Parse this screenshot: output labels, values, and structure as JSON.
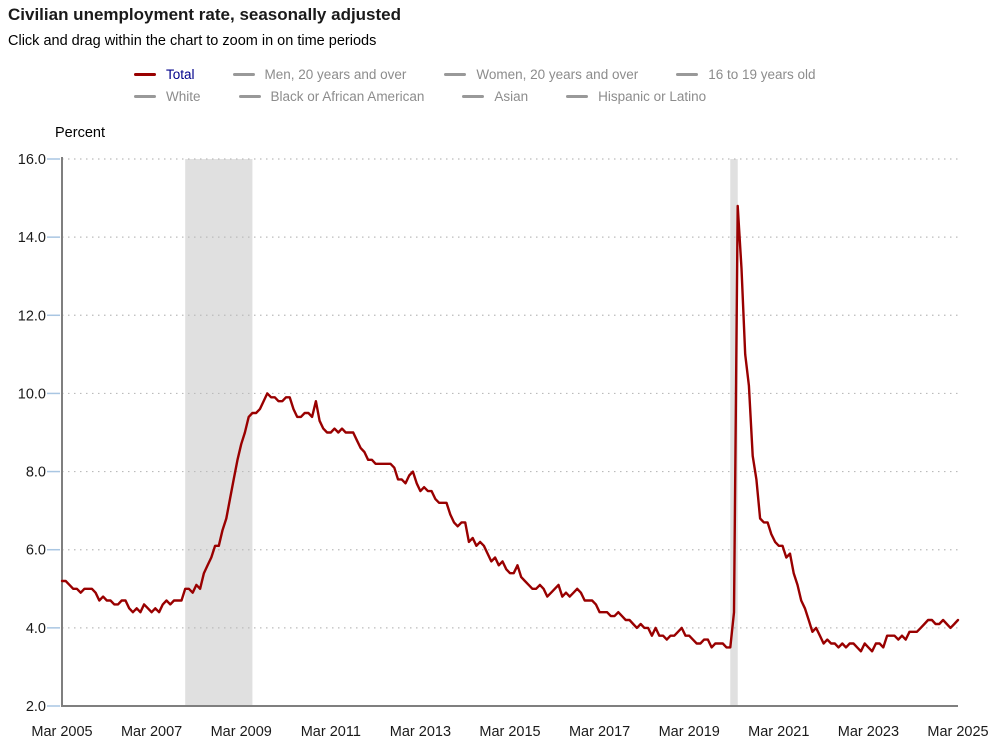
{
  "header": {
    "title": "Civilian unemployment rate, seasonally adjusted",
    "subtitle": "Click and drag within the chart to zoom in on time periods"
  },
  "legend": {
    "rows": [
      {
        "items": [
          {
            "label": "Total",
            "active": true
          },
          {
            "label": "Men, 20 years and over",
            "active": false
          },
          {
            "label": "Women, 20 years and over",
            "active": false
          },
          {
            "label": "16 to 19 years old",
            "active": false
          }
        ]
      },
      {
        "items": [
          {
            "label": "White",
            "active": false
          },
          {
            "label": "Black or African American",
            "active": false
          },
          {
            "label": "Asian",
            "active": false
          },
          {
            "label": "Hispanic or Latino",
            "active": false
          }
        ]
      }
    ]
  },
  "colors": {
    "series_active": "#990000",
    "active_legend_label": "#00008b",
    "inactive_legend_text": "#8c8c8c",
    "inactive_legend_dash": "#999999",
    "recession_band": "#e0e0e0",
    "axis": "#7f7f7f",
    "gridline": "#bbbbbb",
    "ytick_mark": "#a9c6e2",
    "axis_label_text": "#1a1a1a"
  },
  "chart_data": {
    "type": "line",
    "title": "Civilian unemployment rate, seasonally adjusted",
    "xlabel": "",
    "ylabel": "Percent",
    "ylim": [
      2.0,
      16.0
    ],
    "ytick_step": 2.0,
    "ytick_labels": [
      "2.0",
      "4.0",
      "6.0",
      "8.0",
      "10.0",
      "12.0",
      "14.0",
      "16.0"
    ],
    "x_start": "2005-03",
    "x_end": "2025-03",
    "xtick_labels": [
      "Mar 2005",
      "Mar 2007",
      "Mar 2009",
      "Mar 2011",
      "Mar 2013",
      "Mar 2015",
      "Mar 2017",
      "Mar 2019",
      "Mar 2021",
      "Mar 2023",
      "Mar 2025"
    ],
    "months_per_xtick": 24,
    "grid": "horizontal-dotted",
    "legend_position": "top",
    "recession_bands": [
      {
        "from": "2007-12",
        "to": "2009-06"
      },
      {
        "from": "2020-02",
        "to": "2020-04"
      }
    ],
    "series": [
      {
        "name": "Total",
        "color": "#990000",
        "frequency": "monthly",
        "first_point": "2005-03",
        "values": [
          5.2,
          5.2,
          5.1,
          5.0,
          5.0,
          4.9,
          5.0,
          5.0,
          5.0,
          4.9,
          4.7,
          4.8,
          4.7,
          4.7,
          4.6,
          4.6,
          4.7,
          4.7,
          4.5,
          4.4,
          4.5,
          4.4,
          4.6,
          4.5,
          4.4,
          4.5,
          4.4,
          4.6,
          4.7,
          4.6,
          4.7,
          4.7,
          4.7,
          5.0,
          5.0,
          4.9,
          5.1,
          5.0,
          5.4,
          5.6,
          5.8,
          6.1,
          6.1,
          6.5,
          6.8,
          7.3,
          7.8,
          8.3,
          8.7,
          9.0,
          9.4,
          9.5,
          9.5,
          9.6,
          9.8,
          10.0,
          9.9,
          9.9,
          9.8,
          9.8,
          9.9,
          9.9,
          9.6,
          9.4,
          9.4,
          9.5,
          9.5,
          9.4,
          9.8,
          9.3,
          9.1,
          9.0,
          9.0,
          9.1,
          9.0,
          9.1,
          9.0,
          9.0,
          9.0,
          8.8,
          8.6,
          8.5,
          8.3,
          8.3,
          8.2,
          8.2,
          8.2,
          8.2,
          8.2,
          8.1,
          7.8,
          7.8,
          7.7,
          7.9,
          8.0,
          7.7,
          7.5,
          7.6,
          7.5,
          7.5,
          7.3,
          7.2,
          7.2,
          7.2,
          6.9,
          6.7,
          6.6,
          6.7,
          6.7,
          6.2,
          6.3,
          6.1,
          6.2,
          6.1,
          5.9,
          5.7,
          5.8,
          5.6,
          5.7,
          5.5,
          5.4,
          5.4,
          5.6,
          5.3,
          5.2,
          5.1,
          5.0,
          5.0,
          5.1,
          5.0,
          4.8,
          4.9,
          5.0,
          5.1,
          4.8,
          4.9,
          4.8,
          4.9,
          5.0,
          4.9,
          4.7,
          4.7,
          4.7,
          4.6,
          4.4,
          4.4,
          4.4,
          4.3,
          4.3,
          4.4,
          4.3,
          4.2,
          4.2,
          4.1,
          4.0,
          4.1,
          4.0,
          4.0,
          3.8,
          4.0,
          3.8,
          3.8,
          3.7,
          3.8,
          3.8,
          3.9,
          4.0,
          3.8,
          3.8,
          3.7,
          3.6,
          3.6,
          3.7,
          3.7,
          3.5,
          3.6,
          3.6,
          3.6,
          3.5,
          3.5,
          4.4,
          14.8,
          13.2,
          11.0,
          10.2,
          8.4,
          7.8,
          6.8,
          6.7,
          6.7,
          6.4,
          6.2,
          6.1,
          6.1,
          5.8,
          5.9,
          5.4,
          5.1,
          4.7,
          4.5,
          4.2,
          3.9,
          4.0,
          3.8,
          3.6,
          3.7,
          3.6,
          3.6,
          3.5,
          3.6,
          3.5,
          3.6,
          3.6,
          3.5,
          3.4,
          3.6,
          3.5,
          3.4,
          3.6,
          3.6,
          3.5,
          3.8,
          3.8,
          3.8,
          3.7,
          3.8,
          3.7,
          3.9,
          3.9,
          3.9,
          4.0,
          4.1,
          4.2,
          4.2,
          4.1,
          4.1,
          4.2,
          4.1,
          4.0,
          4.1,
          4.2
        ]
      }
    ]
  }
}
